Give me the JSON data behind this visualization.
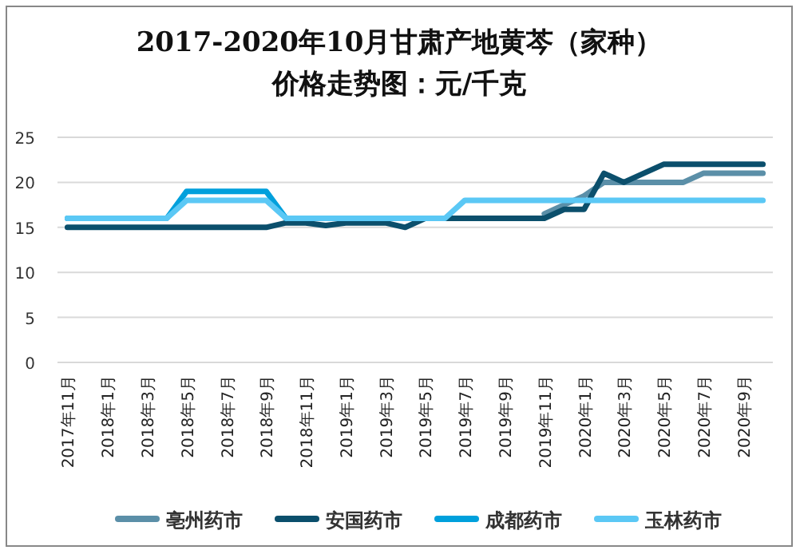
{
  "chart_data": {
    "type": "line",
    "title": "2017-2020年10月甘肃产地黄芩（家种）",
    "subtitle": "价格走势图：元/千克",
    "categories": [
      "2017年11月",
      null,
      "2018年1月",
      null,
      "2018年3月",
      null,
      "2018年5月",
      null,
      "2018年7月",
      null,
      "2018年9月",
      null,
      "2018年11月",
      null,
      "2019年1月",
      null,
      "2019年3月",
      null,
      "2019年5月",
      null,
      "2019年7月",
      null,
      "2019年9月",
      null,
      "2019年11月",
      null,
      "2020年1月",
      null,
      "2020年3月",
      null,
      "2020年5月",
      null,
      "2020年7月",
      null,
      "2020年9月",
      null
    ],
    "ylim": [
      0,
      25
    ],
    "yticks": [
      0,
      5,
      10,
      15,
      20,
      25
    ],
    "grid": "y",
    "legend": "bottom",
    "marker": "none",
    "line_style": "solid",
    "series": [
      {
        "name": "亳州药市",
        "color": "#5b8fa8",
        "values": [
          null,
          null,
          null,
          null,
          null,
          null,
          null,
          null,
          null,
          null,
          null,
          null,
          null,
          null,
          null,
          null,
          null,
          null,
          null,
          null,
          null,
          null,
          null,
          null,
          16.5,
          17.5,
          18.5,
          20,
          20,
          20,
          20,
          20,
          21,
          21,
          21,
          21
        ]
      },
      {
        "name": "安国药市",
        "color": "#0b4f6c",
        "values": [
          15,
          15,
          15,
          15,
          15,
          15,
          15,
          15,
          15,
          15,
          15,
          15.5,
          15.5,
          15.2,
          15.5,
          15.5,
          15.5,
          15,
          16,
          16,
          16,
          16,
          16,
          16,
          16,
          17,
          17,
          21,
          20,
          21,
          22,
          22,
          22,
          22,
          22,
          22
        ]
      },
      {
        "name": "成都药市",
        "color": "#00a0dc",
        "values": [
          16,
          16,
          16,
          16,
          16,
          16,
          19,
          19,
          19,
          19,
          19,
          16,
          null,
          null,
          null,
          null,
          null,
          null,
          null,
          null,
          null,
          null,
          null,
          null,
          null,
          null,
          null,
          null,
          null,
          null,
          null,
          null,
          null,
          null,
          null,
          null
        ]
      },
      {
        "name": "玉林药市",
        "color": "#5bc8f5",
        "values": [
          16,
          16,
          16,
          16,
          16,
          16,
          18,
          18,
          18,
          18,
          18,
          16,
          16,
          16,
          16,
          16,
          16,
          16,
          16,
          16,
          18,
          18,
          18,
          18,
          18,
          18,
          18,
          18,
          18,
          18,
          18,
          18,
          18,
          18,
          18,
          18
        ]
      }
    ]
  }
}
